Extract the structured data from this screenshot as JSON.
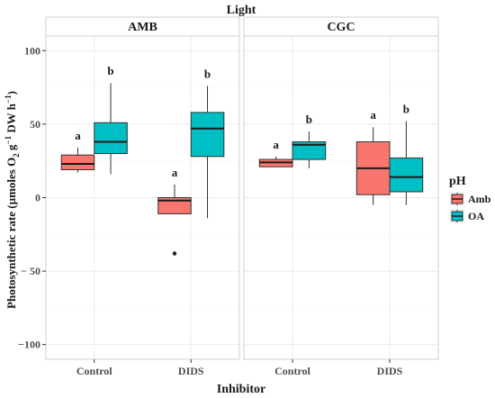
{
  "chart_data": {
    "type": "boxplot",
    "facet_title": "Light",
    "facets": [
      "AMB",
      "CGC"
    ],
    "xlabel": "Inhibitor",
    "ylabel_parts": [
      "Photosynthetic rate (µmoles O",
      "2",
      " g",
      "−1",
      " DW h",
      "−1",
      ")"
    ],
    "categories": [
      "Control",
      "DIDS"
    ],
    "ylim": [
      -110,
      110
    ],
    "yticks": [
      -100,
      -50,
      0,
      50,
      100
    ],
    "ytick_labels": [
      "−100",
      "− 50",
      "0",
      "50",
      "100"
    ],
    "legend": {
      "title": "pH",
      "position": "right",
      "entries": [
        {
          "name": "Amb",
          "color": "#f8766d"
        },
        {
          "name": "OA",
          "color": "#00bfc4"
        }
      ]
    },
    "boxes": [
      {
        "facet": "AMB",
        "category": "Control",
        "series": "Amb",
        "whisker_low": 17,
        "q1": 19,
        "median": 23,
        "q3": 29,
        "whisker_high": 34,
        "outliers": [],
        "letter": "a"
      },
      {
        "facet": "AMB",
        "category": "Control",
        "series": "OA",
        "whisker_low": 16,
        "q1": 30,
        "median": 38,
        "q3": 51,
        "whisker_high": 78,
        "outliers": [],
        "letter": "b"
      },
      {
        "facet": "AMB",
        "category": "DIDS",
        "series": "Amb",
        "whisker_low": -11,
        "q1": -11,
        "median": -2,
        "q3": 0,
        "whisker_high": 9,
        "outliers": [
          -38
        ],
        "letter": "a"
      },
      {
        "facet": "AMB",
        "category": "DIDS",
        "series": "OA",
        "whisker_low": -14,
        "q1": 28,
        "median": 47,
        "q3": 58,
        "whisker_high": 76,
        "outliers": [],
        "letter": "b"
      },
      {
        "facet": "CGC",
        "category": "Control",
        "series": "Amb",
        "whisker_low": 21,
        "q1": 21,
        "median": 24,
        "q3": 26,
        "whisker_high": 28,
        "outliers": [],
        "letter": "a"
      },
      {
        "facet": "CGC",
        "category": "Control",
        "series": "OA",
        "whisker_low": 20,
        "q1": 26,
        "median": 36,
        "q3": 38,
        "whisker_high": 45,
        "outliers": [],
        "letter": "b"
      },
      {
        "facet": "CGC",
        "category": "DIDS",
        "series": "Amb",
        "whisker_low": -5,
        "q1": 2,
        "median": 20,
        "q3": 38,
        "whisker_high": 48,
        "outliers": [],
        "letter": "a"
      },
      {
        "facet": "CGC",
        "category": "DIDS",
        "series": "OA",
        "whisker_low": -5,
        "q1": 4,
        "median": 14,
        "q3": 27,
        "whisker_high": 52,
        "outliers": [],
        "letter": "b"
      }
    ],
    "grid": true
  }
}
